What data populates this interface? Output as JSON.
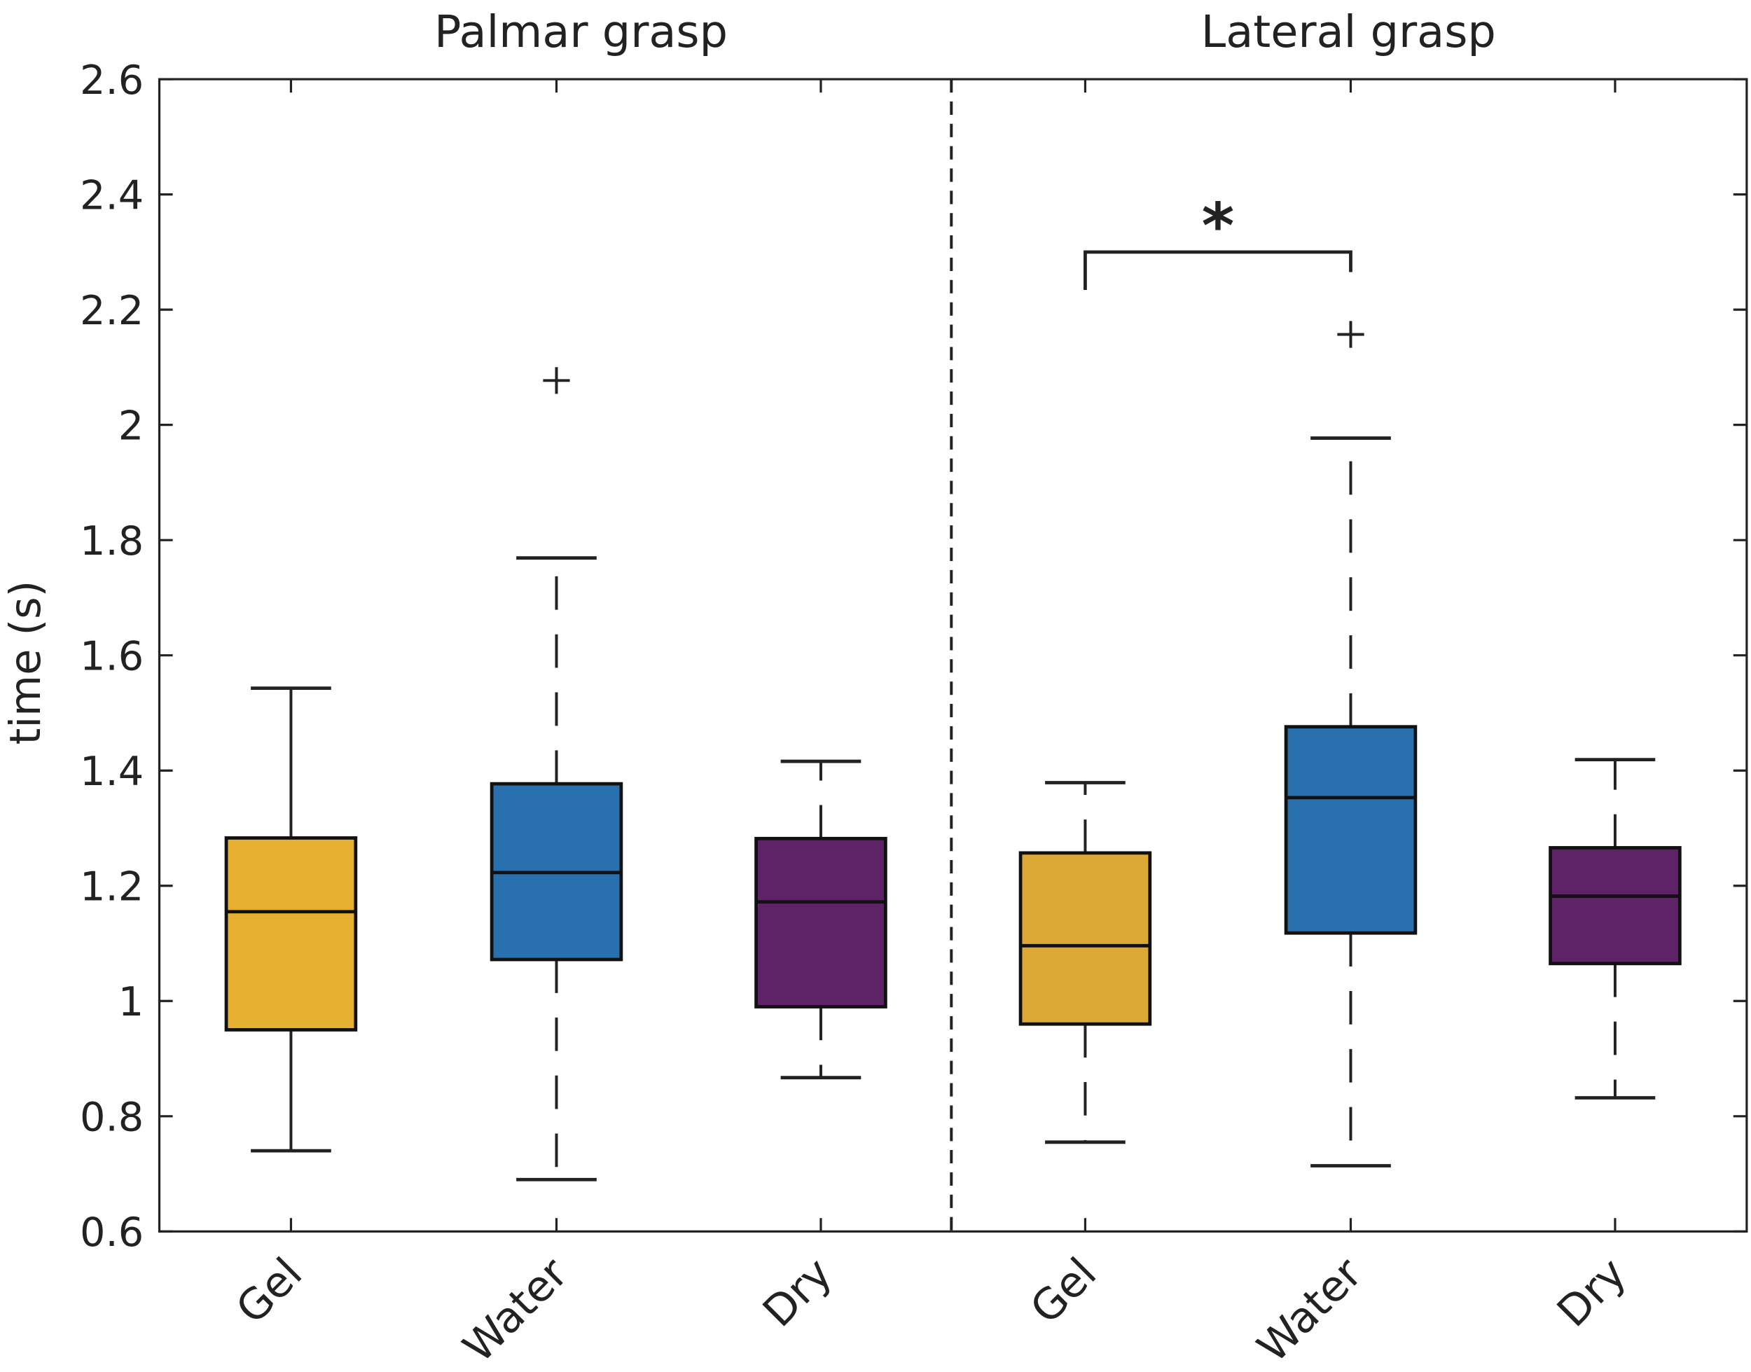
{
  "chart_data": {
    "type": "box",
    "ylabel": "time (s)",
    "ylim": [
      0.6,
      2.6
    ],
    "yticks": [
      "0.6",
      "0.8",
      "1",
      "1.2",
      "1.4",
      "1.6",
      "1.8",
      "2",
      "2.2",
      "2.4",
      "2.6"
    ],
    "grid": false,
    "groups": [
      {
        "title": "Palmar grasp",
        "categories": [
          "Gel",
          "Water",
          "Dry"
        ]
      },
      {
        "title": "Lateral grasp",
        "categories": [
          "Gel",
          "Water",
          "Dry"
        ]
      }
    ],
    "colors": {
      "Gel": "#E5B02F",
      "Water": "#2870AE",
      "Dry": "#5E2366",
      "Gel_lateral": "#DCA936"
    },
    "boxes": [
      {
        "group": "Palmar grasp",
        "category": "Gel",
        "whisker_low": 0.74,
        "q1": 0.95,
        "median": 1.155,
        "q3": 1.283,
        "whisker_high": 1.543,
        "outliers": [],
        "color": "#E5B02F"
      },
      {
        "group": "Palmar grasp",
        "category": "Water",
        "whisker_low": 0.69,
        "q1": 1.072,
        "median": 1.223,
        "q3": 1.377,
        "whisker_high": 1.769,
        "outliers": [
          2.077
        ],
        "color": "#2870AE"
      },
      {
        "group": "Palmar grasp",
        "category": "Dry",
        "whisker_low": 0.867,
        "q1": 0.99,
        "median": 1.172,
        "q3": 1.282,
        "whisker_high": 1.416,
        "outliers": [],
        "color": "#5E2366"
      },
      {
        "group": "Lateral grasp",
        "category": "Gel",
        "whisker_low": 0.755,
        "q1": 0.96,
        "median": 1.096,
        "q3": 1.257,
        "whisker_high": 1.379,
        "outliers": [],
        "color": "#DCA936"
      },
      {
        "group": "Lateral grasp",
        "category": "Water",
        "whisker_low": 0.714,
        "q1": 1.118,
        "median": 1.353,
        "q3": 1.476,
        "whisker_high": 1.977,
        "outliers": [
          2.157
        ],
        "color": "#2870AE"
      },
      {
        "group": "Lateral grasp",
        "category": "Dry",
        "whisker_low": 0.832,
        "q1": 1.065,
        "median": 1.182,
        "q3": 1.266,
        "whisker_high": 1.419,
        "outliers": [],
        "color": "#5E2366"
      }
    ],
    "annotations": [
      {
        "type": "significance",
        "between": [
          "Lateral grasp Gel",
          "Lateral grasp Water"
        ],
        "level": 2.3,
        "label": "*"
      }
    ]
  }
}
